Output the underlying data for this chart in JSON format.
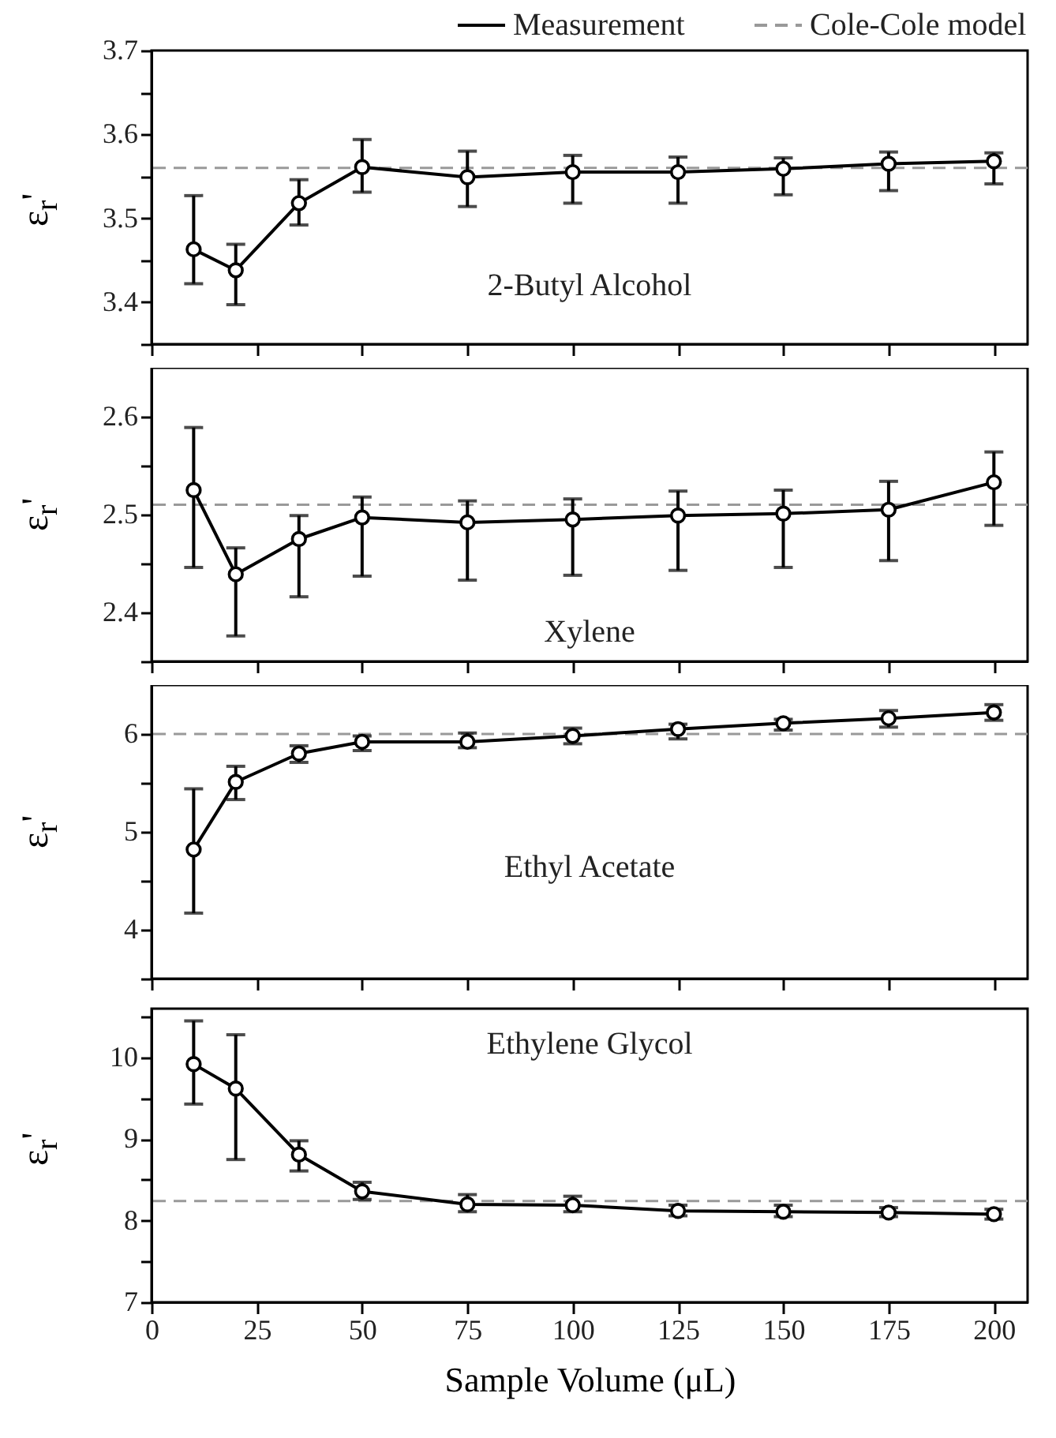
{
  "chart_data": [
    {
      "type": "line",
      "ylabel": "ε$_{r}$'",
      "annotations": [
        "2-Butyl Alcohol"
      ],
      "x": [
        10,
        20,
        35,
        50,
        75,
        100,
        125,
        150,
        175,
        200
      ],
      "xlim": [
        0,
        208
      ],
      "xticks": [
        0,
        25,
        50,
        75,
        100,
        125,
        150,
        175,
        200
      ],
      "ylim": [
        3.35,
        3.7
      ],
      "yticks": [
        {
          "value": 3.35,
          "label": null
        },
        3.4,
        {
          "value": 3.45,
          "label": null
        },
        3.5,
        {
          "value": 3.55,
          "label": null
        },
        3.6,
        {
          "value": 3.65,
          "label": null
        },
        3.7
      ],
      "tick_labels": "y",
      "legend": "top",
      "marker": "circle",
      "line_style": "solid",
      "series": [
        {
          "name": "Measurement",
          "color": "#000000",
          "values": [
            3.463,
            3.438,
            3.518,
            3.561,
            3.549,
            3.555,
            3.555,
            3.559,
            3.565,
            3.568
          ],
          "errors": [
            [
              3.422,
              3.527
            ],
            [
              3.397,
              3.469
            ],
            [
              3.492,
              3.546
            ],
            [
              3.531,
              3.594
            ],
            [
              3.514,
              3.58
            ],
            [
              3.518,
              3.575
            ],
            [
              3.518,
              3.573
            ],
            [
              3.528,
              3.572
            ],
            [
              3.533,
              3.579
            ],
            [
              3.541,
              3.578
            ]
          ]
        }
      ],
      "ref_lines": [
        {
          "axis": "y",
          "value": 3.56,
          "label": "Cole-Cole model",
          "color": "#999999",
          "line_style": "dashed"
        }
      ]
    },
    {
      "type": "line",
      "ylabel": "ε$_{r}$'",
      "annotations": [
        "Xylene"
      ],
      "x": [
        10,
        20,
        35,
        50,
        75,
        100,
        125,
        150,
        175,
        200
      ],
      "xlim": [
        0,
        208
      ],
      "xticks": [
        0,
        25,
        50,
        75,
        100,
        125,
        150,
        175,
        200
      ],
      "ylim": [
        2.35,
        2.65
      ],
      "yticks": [
        {
          "value": 2.35,
          "label": null
        },
        2.4,
        {
          "value": 2.45,
          "label": null
        },
        2.5,
        {
          "value": 2.55,
          "label": null
        },
        2.6
      ],
      "tick_labels": "y",
      "marker": "circle",
      "line_style": "solid",
      "series": [
        {
          "color": "#000000",
          "values": [
            2.525,
            2.439,
            2.475,
            2.497,
            2.492,
            2.495,
            2.499,
            2.501,
            2.505,
            2.533
          ],
          "errors": [
            [
              2.446,
              2.589
            ],
            [
              2.376,
              2.466
            ],
            [
              2.416,
              2.499
            ],
            [
              2.437,
              2.518
            ],
            [
              2.433,
              2.514
            ],
            [
              2.438,
              2.516
            ],
            [
              2.443,
              2.524
            ],
            [
              2.446,
              2.525
            ],
            [
              2.453,
              2.534
            ],
            [
              2.489,
              2.564
            ]
          ]
        }
      ],
      "ref_lines": [
        {
          "axis": "y",
          "value": 2.51,
          "color": "#999999",
          "line_style": "dashed"
        }
      ]
    },
    {
      "type": "line",
      "ylabel": "ε$_{r}$'",
      "annotations": [
        "Ethyl Acetate"
      ],
      "x": [
        10,
        20,
        35,
        50,
        75,
        100,
        125,
        150,
        175,
        200
      ],
      "xlim": [
        0,
        208
      ],
      "xticks": [
        0,
        25,
        50,
        75,
        100,
        125,
        150,
        175,
        200
      ],
      "ylim": [
        3.5,
        6.5
      ],
      "yticks": [
        {
          "value": 3.5,
          "label": null
        },
        4,
        {
          "value": 4.5,
          "label": null
        },
        5,
        {
          "value": 5.5,
          "label": null
        },
        6
      ],
      "tick_labels": "y",
      "marker": "circle",
      "line_style": "solid",
      "series": [
        {
          "color": "#000000",
          "values": [
            4.82,
            5.51,
            5.8,
            5.92,
            5.92,
            5.98,
            6.05,
            6.11,
            6.16,
            6.22
          ],
          "errors": [
            [
              4.17,
              5.44
            ],
            [
              5.33,
              5.67
            ],
            [
              5.71,
              5.88
            ],
            [
              5.83,
              5.98
            ],
            [
              5.86,
              6.01
            ],
            [
              5.9,
              6.06
            ],
            [
              5.95,
              6.1
            ],
            [
              6.04,
              6.15
            ],
            [
              6.07,
              6.24
            ],
            [
              6.14,
              6.3
            ]
          ]
        }
      ],
      "ref_lines": [
        {
          "axis": "y",
          "value": 6,
          "color": "#999999",
          "line_style": "dashed"
        }
      ]
    },
    {
      "type": "line",
      "xlabel": "Sample Volume (μL)",
      "ylabel": "ε$_{r}$'",
      "annotations": [
        "Ethylene Glycol"
      ],
      "x": [
        10,
        20,
        35,
        50,
        75,
        100,
        125,
        150,
        175,
        200
      ],
      "xlim": [
        0,
        208
      ],
      "xticks": [
        0,
        25,
        50,
        75,
        100,
        125,
        150,
        175,
        200
      ],
      "ylim": [
        7,
        10.6
      ],
      "yticks": [
        7,
        {
          "value": 7.5,
          "label": null
        },
        8,
        {
          "value": 8.5,
          "label": null
        },
        9,
        {
          "value": 9.5,
          "label": null
        },
        10,
        {
          "value": 10.5,
          "label": null
        }
      ],
      "marker": "circle",
      "line_style": "solid",
      "series": [
        {
          "color": "#000000",
          "values": [
            9.92,
            9.62,
            8.81,
            8.36,
            8.2,
            8.19,
            8.12,
            8.11,
            8.1,
            8.08
          ],
          "errors": [
            [
              9.43,
              10.45
            ],
            [
              8.75,
              10.28
            ],
            [
              8.61,
              8.98
            ],
            [
              8.26,
              8.47
            ],
            [
              8.11,
              8.32
            ],
            [
              8.11,
              8.3
            ],
            [
              8.06,
              8.19
            ],
            [
              8.05,
              8.19
            ],
            [
              8.05,
              8.16
            ],
            [
              8.02,
              8.14
            ]
          ]
        }
      ],
      "ref_lines": [
        {
          "axis": "y",
          "value": 8.24,
          "color": "#999999",
          "line_style": "dashed"
        }
      ]
    }
  ]
}
